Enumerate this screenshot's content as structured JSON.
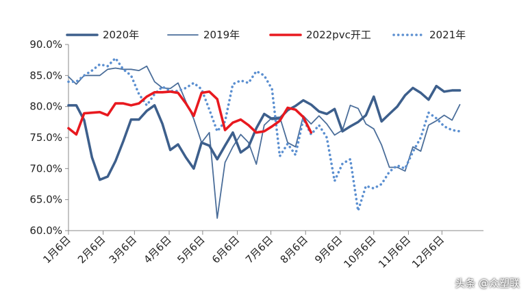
{
  "chart_data": {
    "type": "line",
    "title": "",
    "xlabel": "",
    "ylabel": "",
    "ylim": [
      60,
      90
    ],
    "y_ticks": [
      "60.0%",
      "65.0%",
      "70.0%",
      "75.0%",
      "80.0%",
      "85.0%",
      "90.0%"
    ],
    "y_tick_values": [
      60,
      65,
      70,
      75,
      80,
      85,
      90
    ],
    "x_tick_labels": [
      "1月6日",
      "2月6日",
      "3月6日",
      "4月6日",
      "5月6日",
      "6月6日",
      "7月6日",
      "8月6日",
      "9月6日",
      "10月6日",
      "11月6日",
      "12月6日"
    ],
    "x_tick_weeks": [
      0,
      4.43,
      8.43,
      12.86,
      17.14,
      21.57,
      25.86,
      30.29,
      34.71,
      39,
      43.43,
      47.71
    ],
    "legend_position": "top",
    "grid": false,
    "series": [
      {
        "name": "2020年",
        "style": "thick",
        "color": "#3d5f8c",
        "values": [
          80.2,
          80.2,
          77.8,
          71.8,
          68.2,
          68.7,
          71.2,
          74.4,
          77.9,
          77.9,
          79.3,
          80.2,
          77.2,
          73,
          73.9,
          71.8,
          70,
          74.2,
          73.7,
          71.5,
          73.7,
          75.8,
          72.6,
          73.5,
          76.5,
          78.8,
          78,
          78.1,
          79.4,
          80.1,
          81,
          80.3,
          79.2,
          78.8,
          79.6,
          76,
          76.8,
          77.5,
          78.6,
          81.6,
          77.6,
          78.8,
          80,
          81.8,
          83,
          82.2,
          81.1,
          83.3,
          82.4,
          82.6,
          82.6
        ]
      },
      {
        "name": "2019年",
        "style": "thin",
        "color": "#4a6d99",
        "values": [
          84.8,
          83.6,
          85,
          85,
          85,
          86,
          86.2,
          86,
          86,
          85.8,
          86.5,
          84,
          83,
          82.9,
          83.8,
          80.8,
          78,
          74.2,
          75.8,
          62,
          71,
          73.5,
          75.5,
          74.2,
          70.7,
          77,
          78.2,
          78.3,
          74.2,
          73.5,
          78.5,
          77.2,
          78.5,
          77.2,
          75.4,
          76.2,
          80.2,
          79.7,
          77.2,
          76.4,
          73.8,
          70.2,
          70.2,
          69.6,
          73.5,
          72.8,
          77,
          77.7,
          78.6,
          77.8,
          80.3
        ]
      },
      {
        "name": "2022pvc开工",
        "style": "red",
        "color": "#e8191f",
        "values": [
          76.5,
          75.5,
          78.9,
          79,
          79.1,
          78.6,
          80.5,
          80.5,
          80.2,
          80.5,
          81.6,
          82.3,
          82.3,
          82.4,
          82.2,
          80.5,
          78.5,
          82.2,
          82.4,
          81.2,
          76.2,
          77.4,
          77.9,
          77,
          75.8,
          76,
          76.8,
          77.7,
          79.8,
          79.5,
          78.3,
          75.8
        ]
      },
      {
        "name": "2021年",
        "style": "dotted",
        "color": "#5b8fd0",
        "values": [
          84,
          84,
          85,
          85.8,
          86.8,
          86.5,
          87.8,
          86,
          85,
          82,
          80.2,
          82,
          83.2,
          82.5,
          82.5,
          83,
          83.8,
          82.8,
          79.5,
          76,
          77.6,
          83.6,
          84.2,
          83.8,
          85.7,
          85,
          82.8,
          72,
          74,
          72.2,
          78,
          75.5,
          77,
          75,
          68,
          70.8,
          71.5,
          63.2,
          67.2,
          66.8,
          67.5,
          69.5,
          70.5,
          70,
          72.7,
          75,
          79,
          78.1,
          76.8,
          76.2,
          76
        ]
      }
    ]
  },
  "watermark": "头条 @众塑联"
}
